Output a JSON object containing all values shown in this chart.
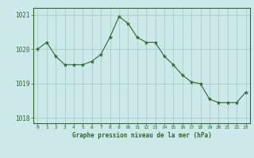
{
  "x": [
    0,
    1,
    2,
    3,
    4,
    5,
    6,
    7,
    8,
    9,
    10,
    11,
    12,
    13,
    14,
    15,
    16,
    17,
    18,
    19,
    20,
    21,
    22,
    23
  ],
  "y": [
    1020.0,
    1020.2,
    1019.8,
    1019.55,
    1019.55,
    1019.55,
    1019.65,
    1019.85,
    1020.35,
    1020.95,
    1020.75,
    1020.35,
    1020.2,
    1020.2,
    1019.8,
    1019.55,
    1019.25,
    1019.05,
    1019.0,
    1018.55,
    1018.45,
    1018.45,
    1018.45,
    1018.75
  ],
  "line_color": "#2d6a2d",
  "marker_color": "#2d6a2d",
  "bg_color": "#cce8e8",
  "grid_color": "#aacccc",
  "border_color": "#2d6a2d",
  "xlabel": "Graphe pression niveau de la mer (hPa)",
  "xlabel_color": "#2d6a2d",
  "tick_color": "#2d6a2d",
  "ylim": [
    1017.85,
    1021.2
  ],
  "yticks": [
    1018,
    1019,
    1020,
    1021
  ],
  "xlim": [
    -0.5,
    23.5
  ],
  "xticks": [
    0,
    1,
    2,
    3,
    4,
    5,
    6,
    7,
    8,
    9,
    10,
    11,
    12,
    13,
    14,
    15,
    16,
    17,
    18,
    19,
    20,
    21,
    22,
    23
  ]
}
